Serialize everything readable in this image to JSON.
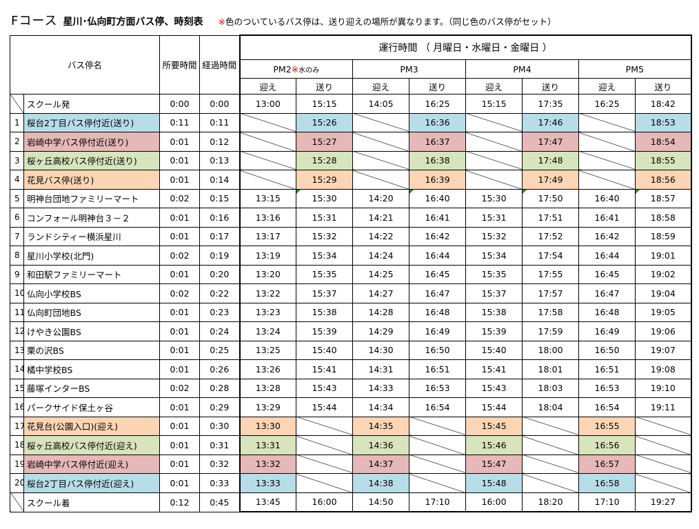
{
  "title": {
    "course": "Fコース",
    "main": "星川･仏向町方面バス停、時刻表",
    "note_mark": "※",
    "note": "色のついているバス停は、送り迎えの場所が異なります。（同じ色のバス停がセット）"
  },
  "header": {
    "stop_name": "バス停名",
    "required_time": "所要時間",
    "elapsed_time": "経過時間",
    "operation_title": "運行時間 （ 月曜日・水曜日・金曜日 ）",
    "runs": [
      {
        "label": "PM2",
        "mark": "※",
        "note": "水のみ"
      },
      {
        "label": "PM3"
      },
      {
        "label": "PM4"
      },
      {
        "label": "PM5"
      }
    ],
    "pickup": "迎え",
    "dropoff": "送り"
  },
  "rows": [
    {
      "num": "",
      "name": "スクール発",
      "req": "0:00",
      "el": "0:00",
      "times": [
        "13:00",
        "15:15",
        "14:05",
        "16:25",
        "15:15",
        "17:35",
        "16:25",
        "18:42"
      ]
    },
    {
      "num": "1",
      "name": "桜台2丁目バス停付近(送り)",
      "req": "0:11",
      "el": "0:11",
      "color": "blue",
      "times": [
        "",
        "15:26",
        "",
        "16:36",
        "",
        "17:46",
        "",
        "18:53"
      ]
    },
    {
      "num": "2",
      "name": "岩崎中学バス停付近(送り)",
      "req": "0:01",
      "el": "0:12",
      "color": "pink",
      "times": [
        "",
        "15:27",
        "",
        "16:37",
        "",
        "17:47",
        "",
        "18:54"
      ]
    },
    {
      "num": "3",
      "name": "桜ヶ丘高校バス停付近(送り)",
      "req": "0:01",
      "el": "0:13",
      "color": "green",
      "times": [
        "",
        "15:28",
        "",
        "16:38",
        "",
        "17:48",
        "",
        "18:55"
      ]
    },
    {
      "num": "4",
      "name": "花見バス停(送り)",
      "req": "0:01",
      "el": "0:14",
      "color": "orange",
      "times": [
        "",
        "15:29",
        "",
        "16:39",
        "",
        "17:49",
        "",
        "18:56"
      ]
    },
    {
      "num": "5",
      "name": "明神台団地ファミリーマート",
      "req": "0:02",
      "el": "0:15",
      "times": [
        "13:15",
        "15:30",
        "14:20",
        "16:40",
        "15:30",
        "17:50",
        "16:40",
        "18:57"
      ]
    },
    {
      "num": "6",
      "name": "コンフォール明神台３－２",
      "req": "0:01",
      "el": "0:16",
      "times": [
        "13:16",
        "15:31",
        "14:21",
        "16:41",
        "15:31",
        "17:51",
        "16:41",
        "18:58"
      ]
    },
    {
      "num": "7",
      "name": "ランドシティー横浜星川",
      "req": "0:01",
      "el": "0:17",
      "times": [
        "13:17",
        "15:32",
        "14:22",
        "16:42",
        "15:32",
        "17:52",
        "16:42",
        "18:59"
      ]
    },
    {
      "num": "8",
      "name": "星川小学校(北門)",
      "req": "0:02",
      "el": "0:19",
      "times": [
        "13:19",
        "15:34",
        "14:24",
        "16:44",
        "15:34",
        "17:54",
        "16:44",
        "19:01"
      ]
    },
    {
      "num": "9",
      "name": "和田駅ファミリーマート",
      "req": "0:01",
      "el": "0:20",
      "times": [
        "13:20",
        "15:35",
        "14:25",
        "16:45",
        "15:35",
        "17:55",
        "16:45",
        "19:02"
      ]
    },
    {
      "num": "10",
      "name": "仏向小学校BS",
      "req": "0:02",
      "el": "0:22",
      "times": [
        "13:22",
        "15:37",
        "14:27",
        "16:47",
        "15:37",
        "17:57",
        "16:47",
        "19:04"
      ]
    },
    {
      "num": "11",
      "name": "仏向町団地BS",
      "req": "0:01",
      "el": "0:23",
      "times": [
        "13:23",
        "15:38",
        "14:28",
        "16:48",
        "15:38",
        "17:58",
        "16:48",
        "19:05"
      ]
    },
    {
      "num": "12",
      "name": "けやき公園BS",
      "req": "0:01",
      "el": "0:24",
      "times": [
        "13:24",
        "15:39",
        "14:29",
        "16:49",
        "15:39",
        "17:59",
        "16:49",
        "19:06"
      ]
    },
    {
      "num": "13",
      "name": "栗の沢BS",
      "req": "0:01",
      "el": "0:25",
      "times": [
        "13:25",
        "15:40",
        "14:30",
        "16:50",
        "15:40",
        "18:00",
        "16:50",
        "19:07"
      ]
    },
    {
      "num": "14",
      "name": "橘中学校BS",
      "req": "0:01",
      "el": "0:26",
      "times": [
        "13:26",
        "15:41",
        "14:31",
        "16:51",
        "15:41",
        "18:01",
        "16:51",
        "19:08"
      ]
    },
    {
      "num": "15",
      "name": "藤塚インターBS",
      "req": "0:02",
      "el": "0:28",
      "times": [
        "13:28",
        "15:43",
        "14:33",
        "16:53",
        "15:43",
        "18:03",
        "16:53",
        "19:10"
      ]
    },
    {
      "num": "16",
      "name": "パークサイド保土ヶ谷",
      "req": "0:01",
      "el": "0:29",
      "times": [
        "13:29",
        "15:44",
        "14:34",
        "16:54",
        "15:44",
        "18:04",
        "16:54",
        "19:11"
      ]
    },
    {
      "num": "17",
      "name": "花見台(公園入口)(迎え)",
      "req": "0:01",
      "el": "0:30",
      "color": "orange",
      "times": [
        "13:30",
        "",
        "14:35",
        "",
        "15:45",
        "",
        "16:55",
        ""
      ]
    },
    {
      "num": "18",
      "name": "桜ヶ丘高校バス停付近(迎え)",
      "req": "0:01",
      "el": "0:31",
      "color": "green",
      "times": [
        "13:31",
        "",
        "14:36",
        "",
        "15:46",
        "",
        "16:56",
        ""
      ]
    },
    {
      "num": "19",
      "name": "岩崎中学バス停付近(迎え)",
      "req": "0:01",
      "el": "0:32",
      "color": "pink",
      "times": [
        "13:32",
        "",
        "14:37",
        "",
        "15:47",
        "",
        "16:57",
        ""
      ]
    },
    {
      "num": "20",
      "name": "桜台2丁目バス停付近(迎え)",
      "req": "0:01",
      "el": "0:33",
      "color": "blue",
      "times": [
        "13:33",
        "",
        "14:38",
        "",
        "15:48",
        "",
        "16:58",
        ""
      ]
    },
    {
      "num": "",
      "name": "スクール着",
      "req": "0:12",
      "el": "0:45",
      "times": [
        "13:45",
        "16:00",
        "14:50",
        "17:10",
        "16:00",
        "18:20",
        "17:10",
        "19:27"
      ]
    }
  ]
}
